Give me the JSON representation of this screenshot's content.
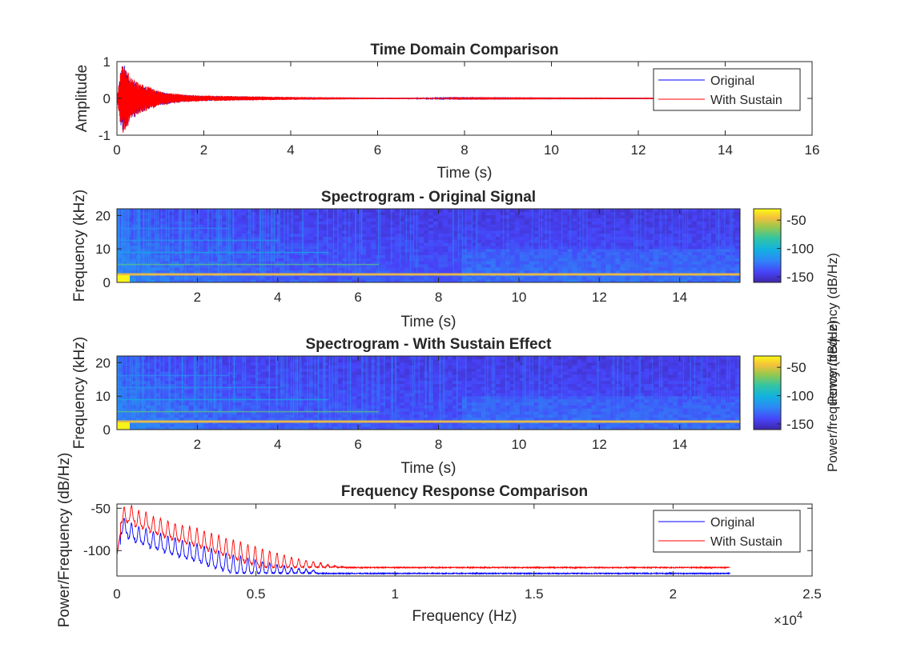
{
  "colors": {
    "original": "#0000ff",
    "sustain": "#ff0000",
    "axes": "#262626",
    "colormap": [
      "#3e26a8",
      "#4743f8",
      "#2e87f7",
      "#12b2df",
      "#33c5a3",
      "#96c84d",
      "#f5c13c",
      "#f9fb14"
    ]
  },
  "chart_data": [
    {
      "type": "line",
      "title": "Time Domain Comparison",
      "xlabel": "Time (s)",
      "ylabel": "Amplitude",
      "xlim": [
        0,
        16
      ],
      "ylim": [
        -1,
        1
      ],
      "xticks": [
        "0",
        "2",
        "4",
        "6",
        "8",
        "10",
        "12",
        "14",
        "16"
      ],
      "yticks": [
        "-1",
        "0",
        "1"
      ],
      "legend": {
        "position": "top-right",
        "entries": [
          "Original",
          "With Sustain"
        ]
      },
      "series": [
        {
          "name": "Original",
          "color": "#0000ff",
          "envelope": {
            "t": [
              0,
              0.1,
              0.15,
              0.3,
              0.5,
              1,
              1.5,
              2,
              3,
              4,
              6,
              8,
              10,
              12.6
            ],
            "amp": [
              0,
              0.85,
              0.95,
              0.6,
              0.4,
              0.18,
              0.1,
              0.07,
              0.05,
              0.035,
              0.02,
              0.012,
              0.008,
              0.005
            ]
          }
        },
        {
          "name": "With Sustain",
          "color": "#ff0000",
          "envelope": {
            "t": [
              0,
              0.1,
              0.15,
              0.3,
              0.5,
              1,
              1.5,
              2,
              3,
              4,
              6,
              8,
              10,
              12.6
            ],
            "amp": [
              0,
              0.9,
              0.97,
              0.65,
              0.42,
              0.2,
              0.11,
              0.08,
              0.06,
              0.04,
              0.022,
              0.013,
              0.009,
              0.006
            ]
          }
        }
      ]
    },
    {
      "type": "heatmap",
      "title": "Spectrogram - Original Signal",
      "xlabel": "Time (s)",
      "ylabel": "Frequency (kHz)",
      "xlim": [
        0,
        15.5
      ],
      "ylim": [
        0,
        22
      ],
      "xticks": [
        "2",
        "4",
        "6",
        "8",
        "10",
        "12",
        "14"
      ],
      "yticks": [
        "0",
        "10",
        "20"
      ],
      "colorbar": {
        "label": "Power/frequency (dB/Hz)",
        "range": [
          -160,
          -30
        ],
        "ticks": [
          "-50",
          "-100",
          "-150"
        ]
      }
    },
    {
      "type": "heatmap",
      "title": "Spectrogram - With Sustain Effect",
      "xlabel": "Time (s)",
      "ylabel": "Frequency (kHz)",
      "xlim": [
        0,
        15.5
      ],
      "ylim": [
        0,
        22
      ],
      "xticks": [
        "2",
        "4",
        "6",
        "8",
        "10",
        "12",
        "14"
      ],
      "yticks": [
        "0",
        "10",
        "20"
      ],
      "colorbar": {
        "label": "Power/frequency (dB/Hz)",
        "range": [
          -160,
          -30
        ],
        "ticks": [
          "-50",
          "-100",
          "-150"
        ]
      }
    },
    {
      "type": "line",
      "title": "Frequency Response Comparison",
      "xlabel": "Frequency (Hz)",
      "ylabel": "Power/Frequency (dB/Hz)",
      "xlim": [
        0,
        25000
      ],
      "ylim": [
        -130,
        -45
      ],
      "xticks": [
        "0",
        "0.5",
        "1",
        "1.5",
        "2",
        "2.5"
      ],
      "yticks": [
        "-50",
        "-100"
      ],
      "x_exponent": "×10",
      "x_exponent_power": "4",
      "legend": {
        "position": "top-right",
        "entries": [
          "Original",
          "With Sustain"
        ]
      },
      "series": [
        {
          "name": "Original",
          "color": "#0000ff",
          "fundamental_hz": 261.6,
          "x_max": 22050,
          "peaks_db": [
            -75,
            -62,
            -68,
            -72,
            -74,
            -78,
            -80,
            -83,
            -85,
            -88,
            -90,
            -92,
            -95,
            -98,
            -100,
            -103,
            -105,
            -107,
            -109,
            -111,
            -113,
            -115,
            -117,
            -118,
            -120,
            -121,
            -122,
            -123
          ],
          "floor_db": -127
        },
        {
          "name": "With Sustain",
          "color": "#ff0000",
          "fundamental_hz": 261.6,
          "x_max": 22050,
          "peaks_db": [
            -67,
            -49,
            -47,
            -53,
            -55,
            -60,
            -62,
            -65,
            -68,
            -70,
            -72,
            -74,
            -77,
            -80,
            -82,
            -85,
            -88,
            -90,
            -93,
            -95,
            -98,
            -100,
            -103,
            -105,
            -108,
            -110,
            -112,
            -113,
            -115,
            -117,
            -118,
            -119
          ],
          "floor_db": -120
        }
      ]
    }
  ]
}
